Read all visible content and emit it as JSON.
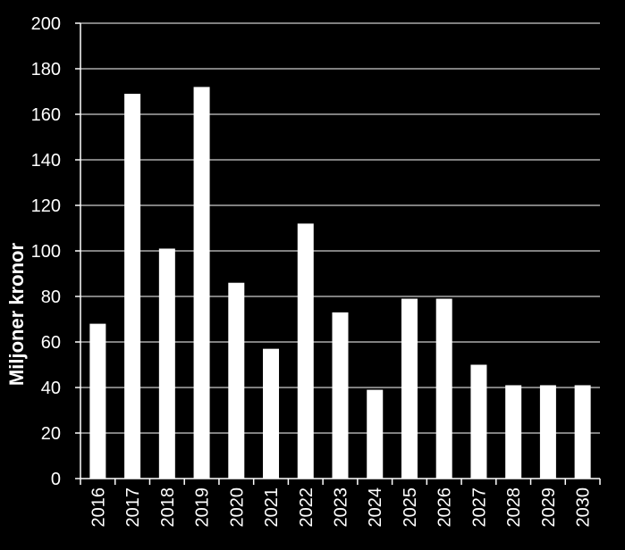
{
  "chart_data": {
    "type": "bar",
    "title": "",
    "xlabel": "",
    "ylabel": "Miljoner kronor",
    "ylim": [
      0,
      200
    ],
    "yticks": [
      0,
      20,
      40,
      60,
      80,
      100,
      120,
      140,
      160,
      180,
      200
    ],
    "grid": true,
    "categories": [
      "2016",
      "2017",
      "2018",
      "2019",
      "2020",
      "2021",
      "2022",
      "2023",
      "2024",
      "2025",
      "2026",
      "2027",
      "2028",
      "2029",
      "2030"
    ],
    "values": [
      68,
      169,
      101,
      172,
      86,
      57,
      112,
      73,
      39,
      79,
      79,
      50,
      41,
      41,
      41
    ],
    "colors": {
      "background": "#000000",
      "bars": "#ffffff",
      "grid": "#ffffff",
      "text": "#ffffff"
    }
  }
}
